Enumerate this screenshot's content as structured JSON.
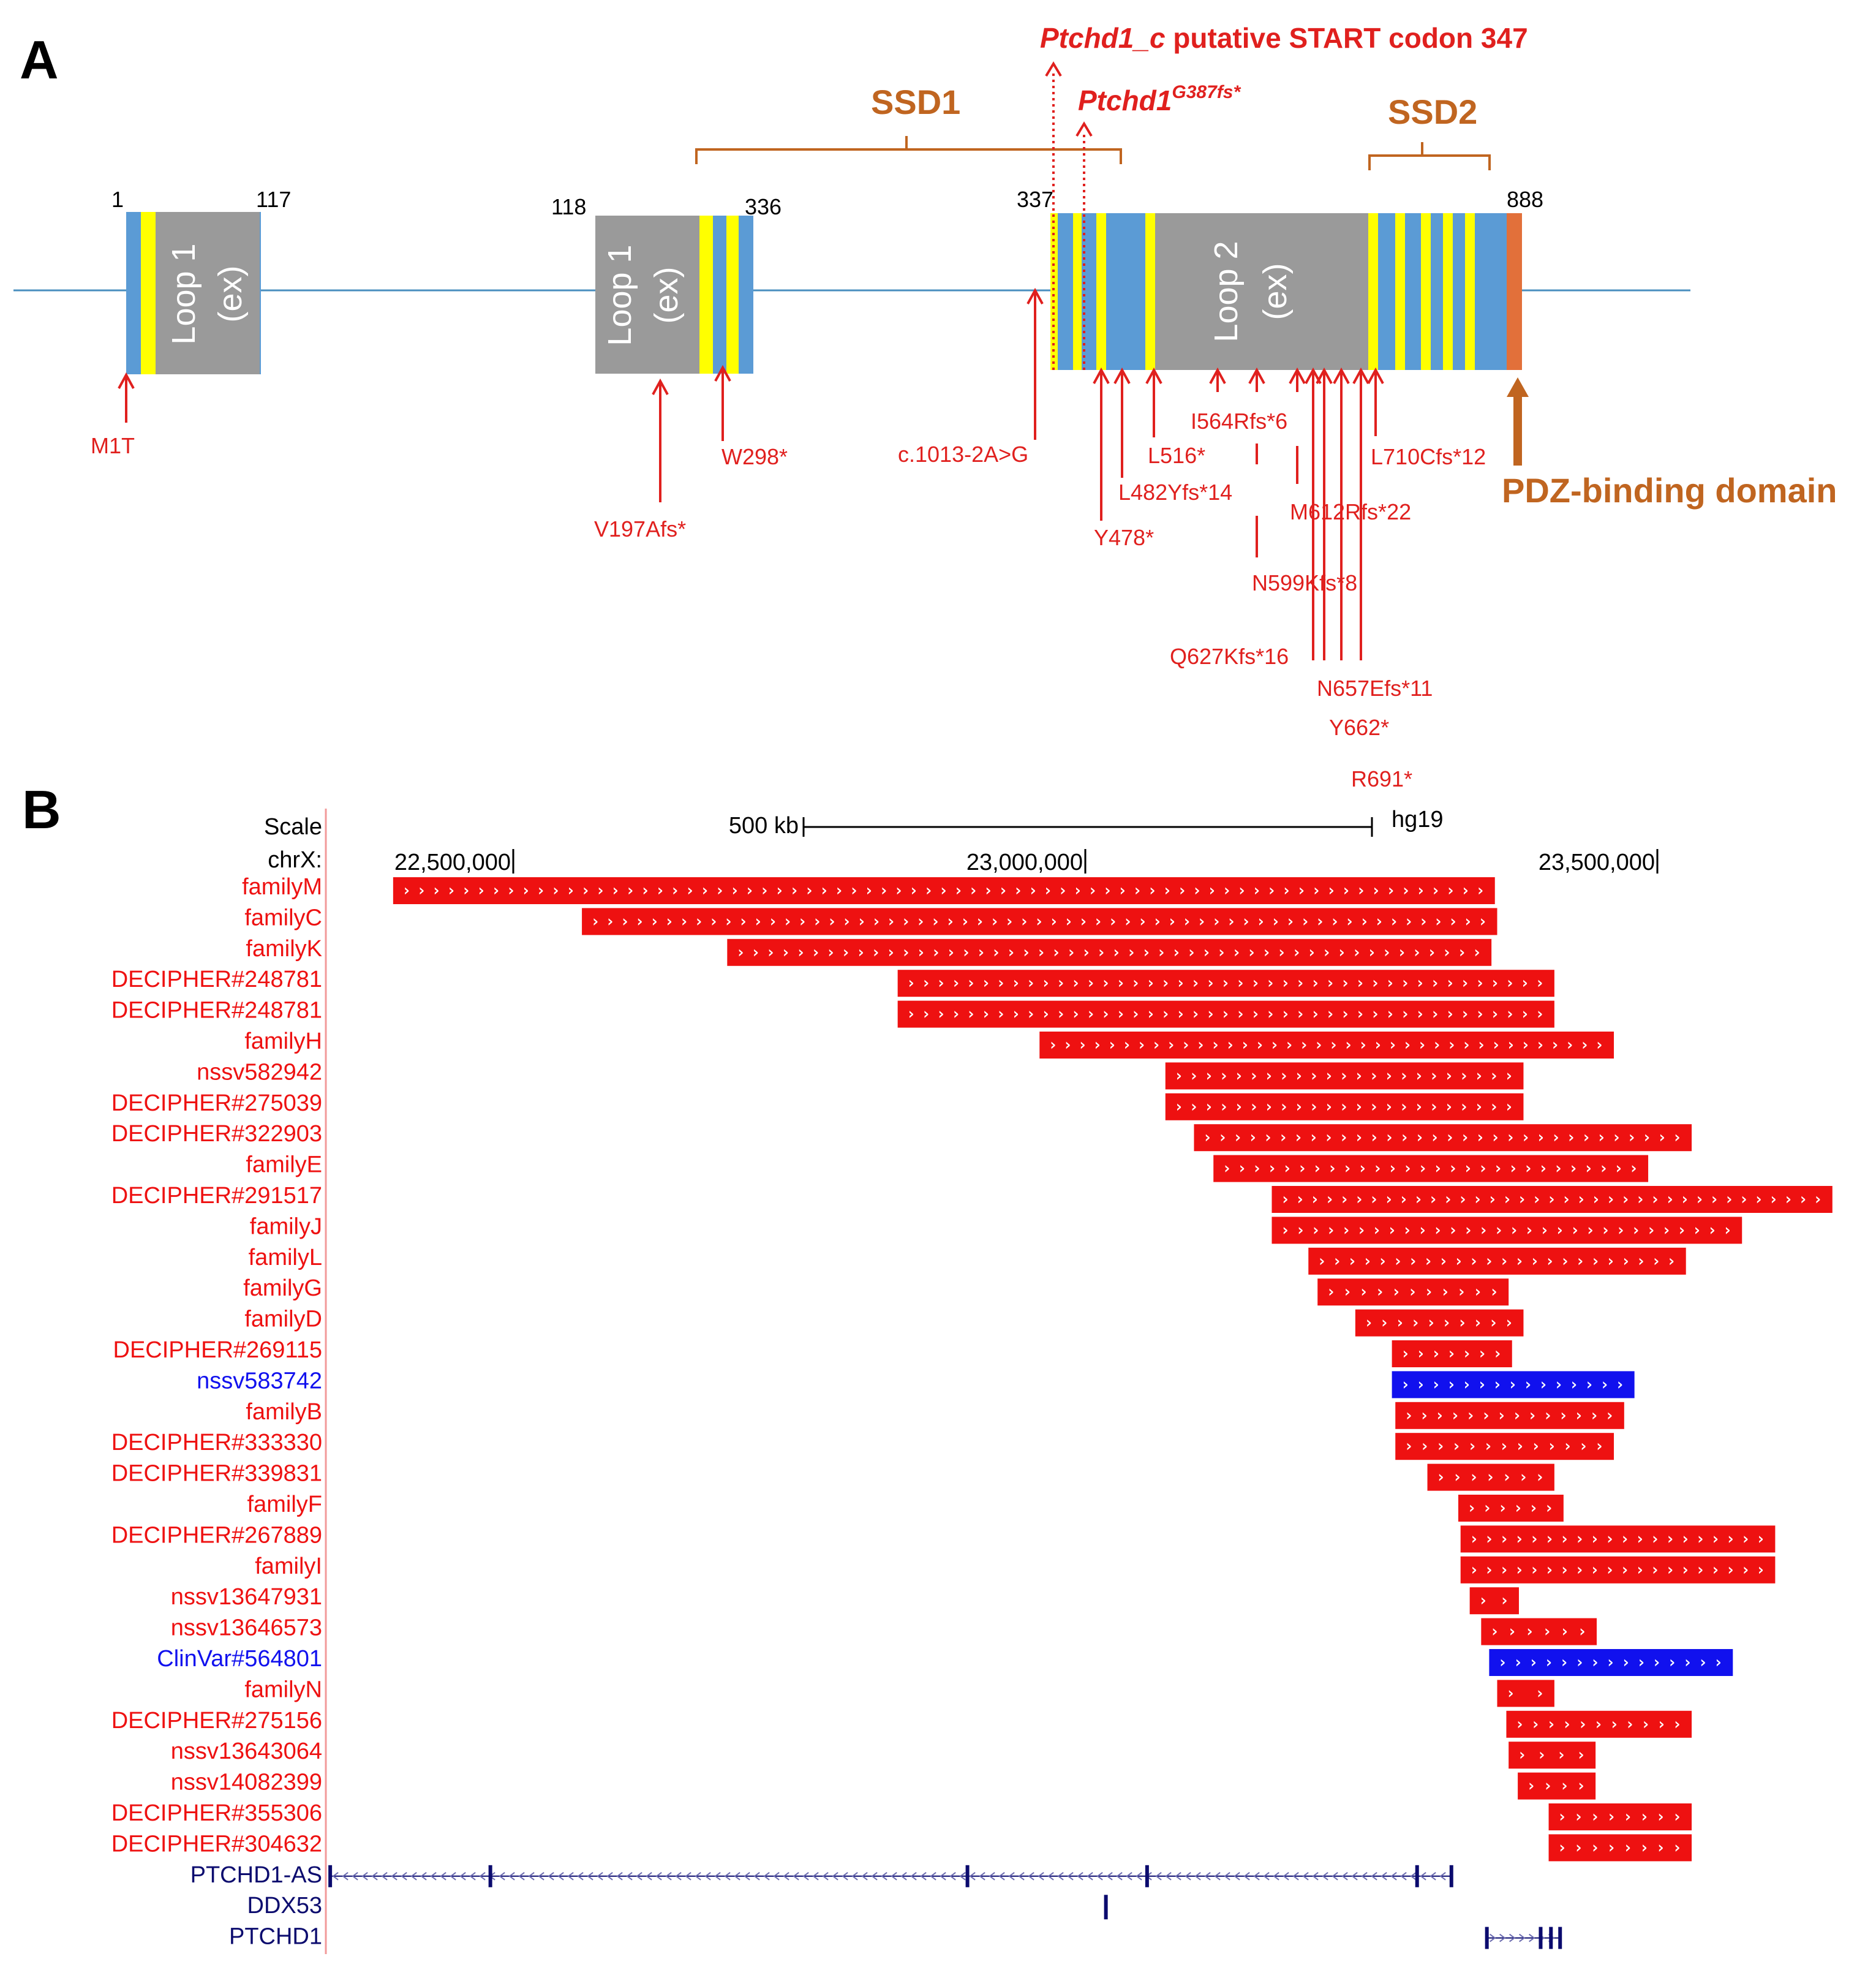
{
  "panel_a": {
    "label": "A",
    "positions": {
      "p1": "1",
      "p117": "117",
      "p118": "118",
      "p336": "336",
      "p337": "337",
      "p888": "888"
    },
    "loop1_label": "Loop 1",
    "loop1_ex": "(ex)",
    "loop2_label": "Loop 2",
    "loop2_ex": "(ex)",
    "ssd1": "SSD1",
    "ssd2": "SSD2",
    "start_codon": {
      "italic": "Ptchd1_c",
      "rest": " putative START codon 347"
    },
    "g387": {
      "base": "Ptchd1",
      "sup": "G387fs*"
    },
    "pdz": "PDZ-binding domain",
    "mutations": {
      "m1t": "M1T",
      "v197": "V197Afs*",
      "w298": "W298*",
      "c1013": "c.1013-2A>G",
      "y478": "Y478*",
      "l482": "L482Yfs*14",
      "l516": "L516*",
      "i564": "I564Rfs*6",
      "n599": "N599Kfs*8",
      "m612": "M612Rfs*22",
      "q627": "Q627Kfs*16",
      "n657": "N657Efs*11",
      "y662": "Y662*",
      "r691": "R691*",
      "l710": "L710Cfs*12"
    }
  },
  "panel_b": {
    "label": "B",
    "scale_label": "Scale",
    "scale_value": "500 kb",
    "assembly": "hg19",
    "chr_label": "chrX:",
    "axis_ticks": [
      "22,500,000",
      "23,000,000",
      "23,500,000"
    ],
    "colors": {
      "red": "#ee1111",
      "blue": "#1111ee",
      "gene": "#0b0b6e"
    },
    "tracks": [
      {
        "name": "familyM",
        "color": "red",
        "start": 22395000,
        "end": 23358000
      },
      {
        "name": "familyC",
        "color": "red",
        "start": 22560000,
        "end": 23360000
      },
      {
        "name": "familyK",
        "color": "red",
        "start": 22687000,
        "end": 23355000
      },
      {
        "name": "DECIPHER#248781",
        "color": "red",
        "start": 22836000,
        "end": 23410000
      },
      {
        "name": "DECIPHER#248781",
        "color": "red",
        "start": 22836000,
        "end": 23410000
      },
      {
        "name": "familyH",
        "color": "red",
        "start": 22960000,
        "end": 23462000
      },
      {
        "name": "nssv582942",
        "color": "red",
        "start": 23070000,
        "end": 23383000
      },
      {
        "name": "DECIPHER#275039",
        "color": "red",
        "start": 23070000,
        "end": 23383000
      },
      {
        "name": "DECIPHER#322903",
        "color": "red",
        "start": 23095000,
        "end": 23530000
      },
      {
        "name": "familyE",
        "color": "red",
        "start": 23112000,
        "end": 23492000
      },
      {
        "name": "DECIPHER#291517",
        "color": "red",
        "start": 23163000,
        "end": 23653000
      },
      {
        "name": "familyJ",
        "color": "red",
        "start": 23163000,
        "end": 23574000
      },
      {
        "name": "familyL",
        "color": "red",
        "start": 23195000,
        "end": 23525000
      },
      {
        "name": "familyG",
        "color": "red",
        "start": 23203000,
        "end": 23370000
      },
      {
        "name": "familyD",
        "color": "red",
        "start": 23236000,
        "end": 23383000
      },
      {
        "name": "DECIPHER#269115",
        "color": "red",
        "start": 23268000,
        "end": 23373000
      },
      {
        "name": "nssv583742",
        "color": "blue",
        "start": 23268000,
        "end": 23480000
      },
      {
        "name": "familyB",
        "color": "red",
        "start": 23271000,
        "end": 23471000
      },
      {
        "name": "DECIPHER#333330",
        "color": "red",
        "start": 23271000,
        "end": 23462000
      },
      {
        "name": "DECIPHER#339831",
        "color": "red",
        "start": 23299000,
        "end": 23410000
      },
      {
        "name": "familyF",
        "color": "red",
        "start": 23326000,
        "end": 23418000
      },
      {
        "name": "DECIPHER#267889",
        "color": "red",
        "start": 23328000,
        "end": 23603000
      },
      {
        "name": "familyI",
        "color": "red",
        "start": 23328000,
        "end": 23603000
      },
      {
        "name": "nssv13647931",
        "color": "red",
        "start": 23336000,
        "end": 23379000
      },
      {
        "name": "nssv13646573",
        "color": "red",
        "start": 23346000,
        "end": 23447000
      },
      {
        "name": "ClinVar#564801",
        "color": "blue",
        "start": 23353000,
        "end": 23566000
      },
      {
        "name": "familyN",
        "color": "red",
        "start": 23360000,
        "end": 23410000
      },
      {
        "name": "DECIPHER#275156",
        "color": "red",
        "start": 23368000,
        "end": 23530000
      },
      {
        "name": "nssv13643064",
        "color": "red",
        "start": 23370000,
        "end": 23446000
      },
      {
        "name": "nssv14082399",
        "color": "red",
        "start": 23378000,
        "end": 23446000
      },
      {
        "name": "DECIPHER#355306",
        "color": "red",
        "start": 23405000,
        "end": 23530000
      },
      {
        "name": "DECIPHER#304632",
        "color": "red",
        "start": 23405000,
        "end": 23530000
      }
    ],
    "genes": [
      {
        "name": "PTCHD1-AS",
        "start": 22340000,
        "end": 23320000,
        "strand": "-"
      },
      {
        "name": "DDX53",
        "start": 23018000,
        "end": 23021000,
        "strand": "+"
      },
      {
        "name": "PTCHD1",
        "start": 23351000,
        "end": 23415000,
        "strand": "+"
      }
    ]
  }
}
